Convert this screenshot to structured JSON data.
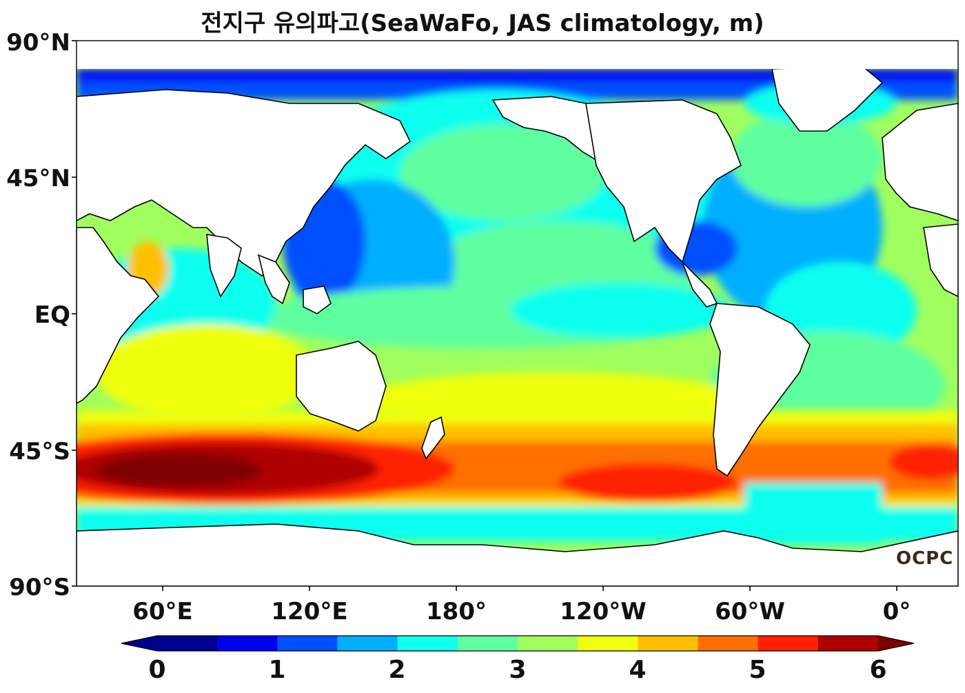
{
  "title": "전지구 유의파고(SeaWaFo, JAS climatology, m)",
  "map": {
    "lat_labels": [
      "90°N",
      "45°N",
      "EQ",
      "45°S",
      "90°S"
    ],
    "lon_labels": [
      "60°E",
      "120°E",
      "180°",
      "120°W",
      "60°W",
      "0°"
    ],
    "colors": {
      "land": "#ffffff",
      "coast": "#000000",
      "sea_ice_or_nodata": "#ffffff"
    }
  },
  "colorbar": {
    "min": 0,
    "max": 6,
    "step": 0.5,
    "extend": "both",
    "tick_labels": [
      "0",
      "1",
      "2",
      "3",
      "4",
      "5",
      "6"
    ],
    "colors": [
      "#00008f",
      "#0000ef",
      "#0050ff",
      "#00afff",
      "#10ffef",
      "#5fffa0",
      "#a0ff5f",
      "#efff10",
      "#ffbf00",
      "#ff6f00",
      "#ff2000",
      "#af0000"
    ],
    "under_color": "#00008f",
    "over_color": "#7f0000"
  },
  "logo": {
    "text": "OCPC"
  }
}
